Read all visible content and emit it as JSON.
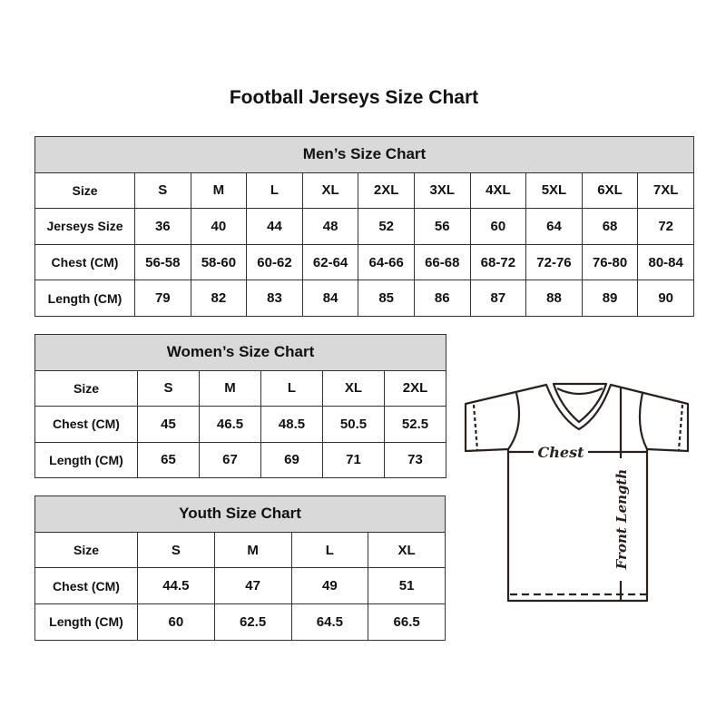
{
  "title": "Football Jerseys Size Chart",
  "men": {
    "caption": "Men’s Size Chart",
    "rows": [
      {
        "label": "Size",
        "values": [
          "S",
          "M",
          "L",
          "XL",
          "2XL",
          "3XL",
          "4XL",
          "5XL",
          "6XL",
          "7XL"
        ]
      },
      {
        "label": "Jerseys Size",
        "values": [
          "36",
          "40",
          "44",
          "48",
          "52",
          "56",
          "60",
          "64",
          "68",
          "72"
        ]
      },
      {
        "label": "Chest (CM)",
        "values": [
          "56-58",
          "58-60",
          "60-62",
          "62-64",
          "64-66",
          "66-68",
          "68-72",
          "72-76",
          "76-80",
          "80-84"
        ]
      },
      {
        "label": "Length (CM)",
        "values": [
          "79",
          "82",
          "83",
          "84",
          "85",
          "86",
          "87",
          "88",
          "89",
          "90"
        ]
      }
    ]
  },
  "women": {
    "caption": "Women’s Size Chart",
    "rows": [
      {
        "label": "Size",
        "values": [
          "S",
          "M",
          "L",
          "XL",
          "2XL"
        ]
      },
      {
        "label": "Chest (CM)",
        "values": [
          "45",
          "46.5",
          "48.5",
          "50.5",
          "52.5"
        ]
      },
      {
        "label": "Length (CM)",
        "values": [
          "65",
          "67",
          "69",
          "71",
          "73"
        ]
      }
    ]
  },
  "youth": {
    "caption": "Youth Size Chart",
    "rows": [
      {
        "label": "Size",
        "values": [
          "S",
          "M",
          "L",
          "XL"
        ]
      },
      {
        "label": "Chest (CM)",
        "values": [
          "44.5",
          "47",
          "49",
          "51"
        ]
      },
      {
        "label": "Length (CM)",
        "values": [
          "60",
          "62.5",
          "64.5",
          "66.5"
        ]
      }
    ]
  },
  "diagram": {
    "chest_label": "Chest",
    "length_label": "Front Length"
  },
  "colors": {
    "header_bg": "#d9d9d9",
    "border": "#333333"
  }
}
